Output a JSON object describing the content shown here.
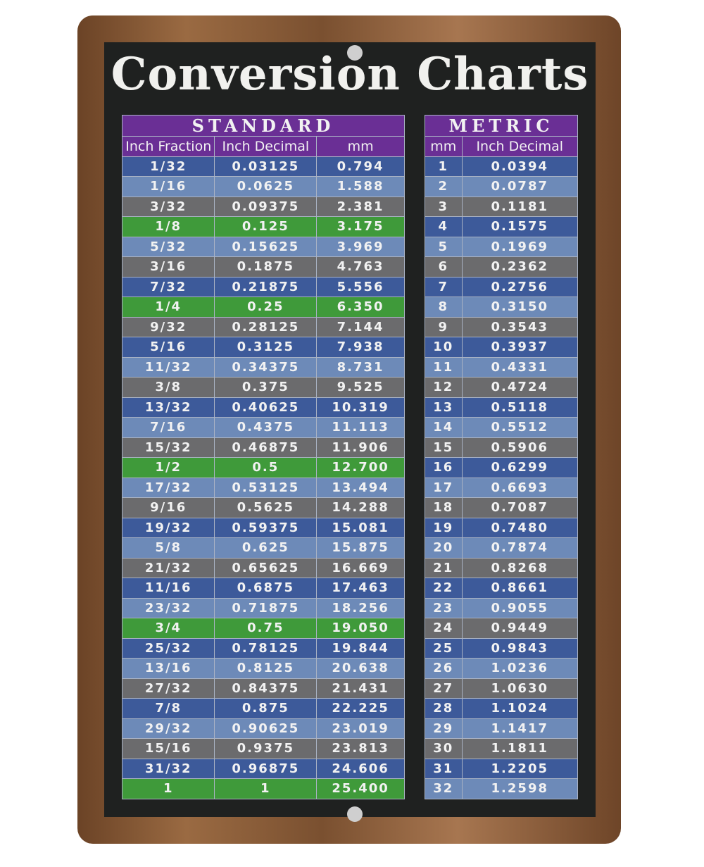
{
  "title": "Conversion Charts",
  "standard": {
    "title": "STANDARD",
    "columns": [
      "Inch Fraction",
      "Inch Decimal",
      "mm"
    ],
    "rows": [
      [
        "1/32",
        "0.03125",
        "0.794"
      ],
      [
        "1/16",
        "0.0625",
        "1.588"
      ],
      [
        "3/32",
        "0.09375",
        "2.381"
      ],
      [
        "1/8",
        "0.125",
        "3.175"
      ],
      [
        "5/32",
        "0.15625",
        "3.969"
      ],
      [
        "3/16",
        "0.1875",
        "4.763"
      ],
      [
        "7/32",
        "0.21875",
        "5.556"
      ],
      [
        "1/4",
        "0.25",
        "6.350"
      ],
      [
        "9/32",
        "0.28125",
        "7.144"
      ],
      [
        "5/16",
        "0.3125",
        "7.938"
      ],
      [
        "11/32",
        "0.34375",
        "8.731"
      ],
      [
        "3/8",
        "0.375",
        "9.525"
      ],
      [
        "13/32",
        "0.40625",
        "10.319"
      ],
      [
        "7/16",
        "0.4375",
        "11.113"
      ],
      [
        "15/32",
        "0.46875",
        "11.906"
      ],
      [
        "1/2",
        "0.5",
        "12.700"
      ],
      [
        "17/32",
        "0.53125",
        "13.494"
      ],
      [
        "9/16",
        "0.5625",
        "14.288"
      ],
      [
        "19/32",
        "0.59375",
        "15.081"
      ],
      [
        "5/8",
        "0.625",
        "15.875"
      ],
      [
        "21/32",
        "0.65625",
        "16.669"
      ],
      [
        "11/16",
        "0.6875",
        "17.463"
      ],
      [
        "23/32",
        "0.71875",
        "18.256"
      ],
      [
        "3/4",
        "0.75",
        "19.050"
      ],
      [
        "25/32",
        "0.78125",
        "19.844"
      ],
      [
        "13/16",
        "0.8125",
        "20.638"
      ],
      [
        "27/32",
        "0.84375",
        "21.431"
      ],
      [
        "7/8",
        "0.875",
        "22.225"
      ],
      [
        "29/32",
        "0.90625",
        "23.019"
      ],
      [
        "15/16",
        "0.9375",
        "23.813"
      ],
      [
        "31/32",
        "0.96875",
        "24.606"
      ],
      [
        "1",
        "1",
        "25.400"
      ]
    ]
  },
  "metric": {
    "title": "METRIC",
    "columns": [
      "mm",
      "Inch Decimal"
    ],
    "rows": [
      [
        "1",
        "0.0394"
      ],
      [
        "2",
        "0.0787"
      ],
      [
        "3",
        "0.1181"
      ],
      [
        "4",
        "0.1575"
      ],
      [
        "5",
        "0.1969"
      ],
      [
        "6",
        "0.2362"
      ],
      [
        "7",
        "0.2756"
      ],
      [
        "8",
        "0.3150"
      ],
      [
        "9",
        "0.3543"
      ],
      [
        "10",
        "0.3937"
      ],
      [
        "11",
        "0.4331"
      ],
      [
        "12",
        "0.4724"
      ],
      [
        "13",
        "0.5118"
      ],
      [
        "14",
        "0.5512"
      ],
      [
        "15",
        "0.5906"
      ],
      [
        "16",
        "0.6299"
      ],
      [
        "17",
        "0.6693"
      ],
      [
        "18",
        "0.7087"
      ],
      [
        "19",
        "0.7480"
      ],
      [
        "20",
        "0.7874"
      ],
      [
        "21",
        "0.8268"
      ],
      [
        "22",
        "0.8661"
      ],
      [
        "23",
        "0.9055"
      ],
      [
        "24",
        "0.9449"
      ],
      [
        "25",
        "0.9843"
      ],
      [
        "26",
        "1.0236"
      ],
      [
        "27",
        "1.0630"
      ],
      [
        "28",
        "1.1024"
      ],
      [
        "29",
        "1.1417"
      ],
      [
        "30",
        "1.1811"
      ],
      [
        "31",
        "1.2205"
      ],
      [
        "32",
        "1.2598"
      ]
    ]
  }
}
